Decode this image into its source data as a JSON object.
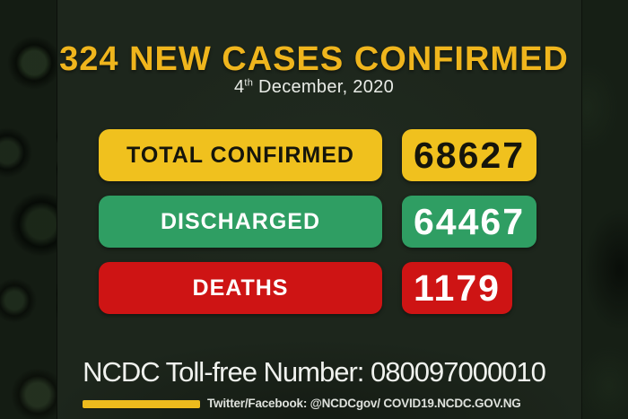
{
  "chart_data": {
    "type": "table",
    "title": "324 NEW CASES CONFIRMED",
    "date": "4th December, 2020",
    "new_cases": 324,
    "categories": [
      "TOTAL CONFIRMED",
      "DISCHARGED",
      "DEATHS"
    ],
    "values": [
      68627,
      64467,
      1179
    ]
  },
  "header": {
    "title": "324 NEW CASES CONFIRMED",
    "date_day": "4",
    "date_suffix": "th",
    "date_rest": " December, 2020"
  },
  "stats": [
    {
      "label": "TOTAL CONFIRMED",
      "value": "68627",
      "box_color": "#F0C11E",
      "text_color": "#15150B"
    },
    {
      "label": "DISCHARGED",
      "value": "64467",
      "box_color": "#2F9E63",
      "text_color": "#FEFEFE"
    },
    {
      "label": "DEATHS",
      "value": "1179",
      "box_color": "#CE1414",
      "text_color": "#FEFEFE"
    }
  ],
  "footer": {
    "tollfree": "NCDC Toll-free Number: 080097000010",
    "social": "Twitter/Facebook: @NCDCgov/ COVID19.NCDC.GOV.NG"
  },
  "colors": {
    "title_gold": "#EFB51D",
    "background": "#1D261C",
    "side_band": "#131B12",
    "accent_bar": "#EDBA1D",
    "date_text": "#E9ECE7"
  }
}
